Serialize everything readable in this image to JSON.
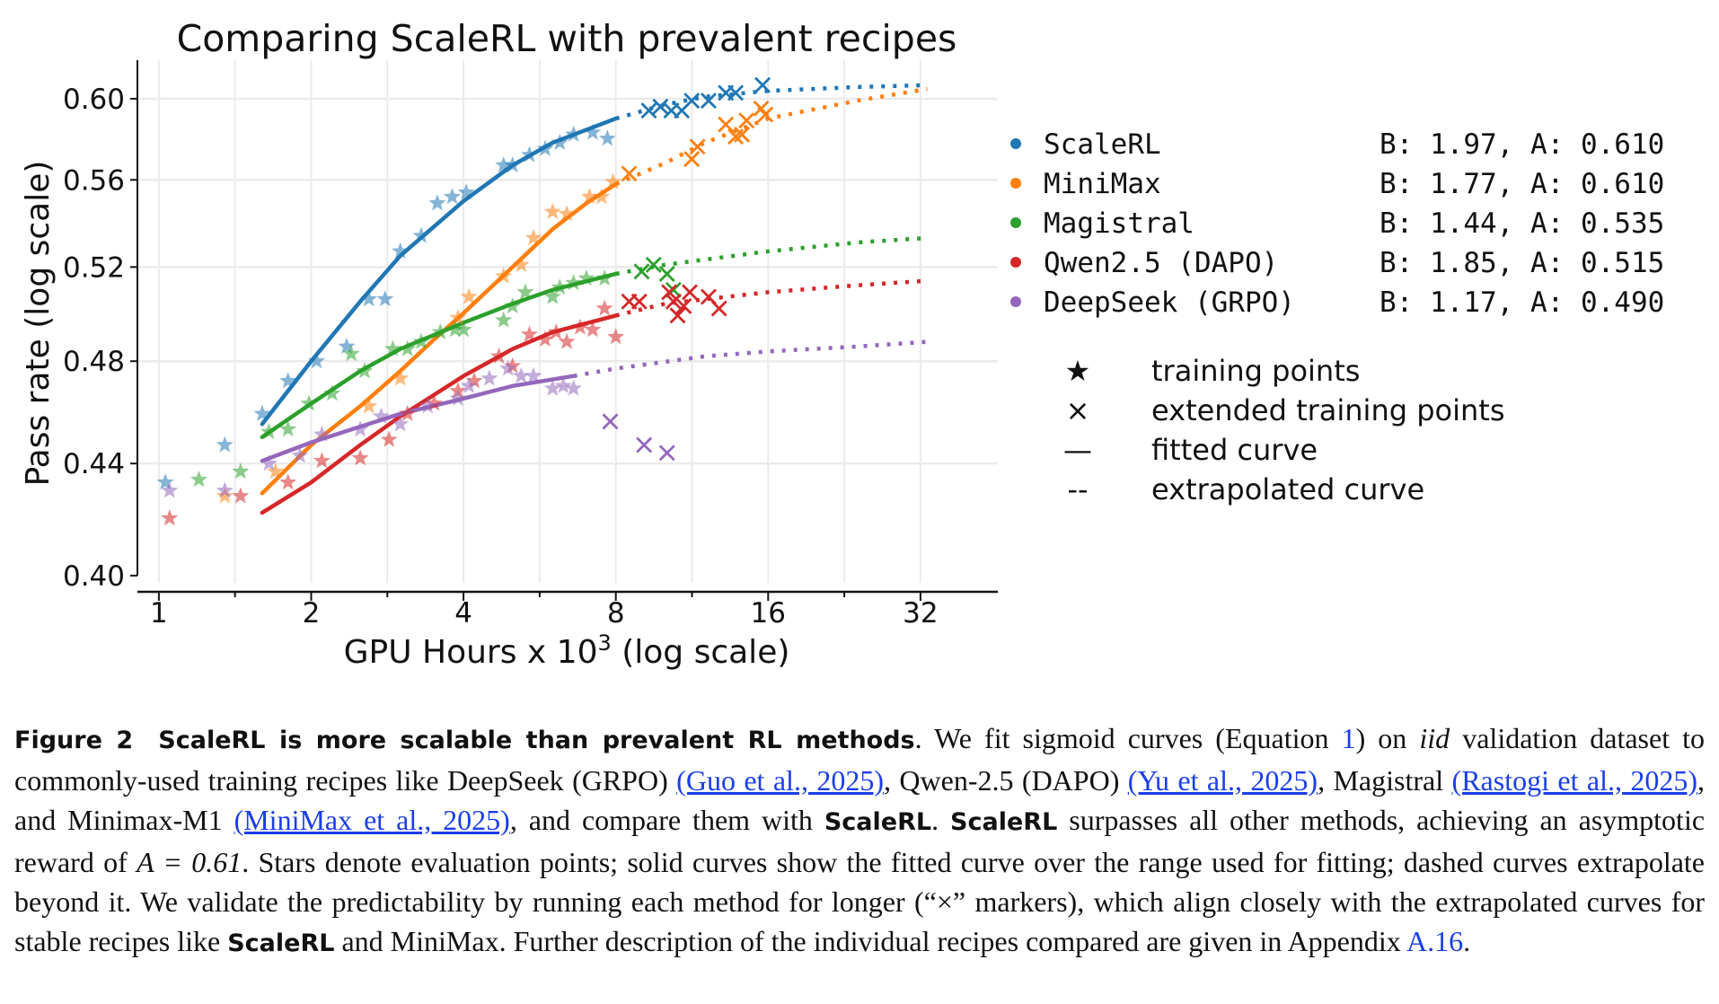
{
  "chart_data": {
    "type": "scatter",
    "title": "Comparing ScaleRL with prevalent recipes",
    "xlabel": "GPU Hours x 10",
    "xlabel_sup": "3",
    "xlabel_suffix": " (log scale)",
    "ylabel": "Pass rate (log scale)",
    "xscale": "log2",
    "yscale": "log",
    "xlim": [
      0.907,
      45.5
    ],
    "ylim": [
      0.4,
      0.62
    ],
    "xticks": [
      1,
      2,
      4,
      8,
      16,
      32
    ],
    "xtick_labels": [
      "1",
      "2",
      "4",
      "8",
      "16",
      "32"
    ],
    "yticks": [
      0.4,
      0.44,
      0.48,
      0.52,
      0.56,
      0.6
    ],
    "ytick_labels": [
      "0.40",
      "0.44",
      "0.48",
      "0.52",
      "0.56",
      "0.60"
    ],
    "grid": true,
    "legend_placement": "right, outside plot",
    "series": [
      {
        "name": "ScaleRL",
        "params": "B: 1.97, A: 0.610",
        "color": "#1f77b4",
        "training_points": [
          [
            1.03,
            0.433
          ],
          [
            1.35,
            0.447
          ],
          [
            1.6,
            0.459
          ],
          [
            1.8,
            0.472
          ],
          [
            2.05,
            0.48
          ],
          [
            2.35,
            0.486
          ],
          [
            2.6,
            0.506
          ],
          [
            2.8,
            0.506
          ],
          [
            3.0,
            0.527
          ],
          [
            3.3,
            0.534
          ],
          [
            3.55,
            0.549
          ],
          [
            3.8,
            0.552
          ],
          [
            4.05,
            0.554
          ],
          [
            4.8,
            0.567
          ],
          [
            5.0,
            0.567
          ],
          [
            5.4,
            0.572
          ],
          [
            5.8,
            0.575
          ],
          [
            6.2,
            0.578
          ],
          [
            6.6,
            0.582
          ],
          [
            7.2,
            0.583
          ],
          [
            7.7,
            0.58
          ]
        ],
        "extended_points": [
          [
            9.3,
            0.594
          ],
          [
            9.8,
            0.596
          ],
          [
            10.3,
            0.594
          ],
          [
            10.8,
            0.594
          ],
          [
            11.3,
            0.599
          ],
          [
            12.2,
            0.599
          ],
          [
            13.2,
            0.603
          ],
          [
            13.8,
            0.603
          ],
          [
            15.6,
            0.607
          ]
        ],
        "fitted_curve": [
          [
            1.6,
            0.455
          ],
          [
            2,
            0.48
          ],
          [
            2.5,
            0.505
          ],
          [
            3,
            0.525
          ],
          [
            4,
            0.55
          ],
          [
            5,
            0.567
          ],
          [
            6,
            0.578
          ],
          [
            8,
            0.59
          ]
        ],
        "extrapolated_curve": [
          [
            8,
            0.59
          ],
          [
            10,
            0.597
          ],
          [
            12,
            0.601
          ],
          [
            16,
            0.604
          ],
          [
            24,
            0.606
          ],
          [
            33,
            0.607
          ]
        ]
      },
      {
        "name": "MiniMax",
        "params": "B: 1.77, A: 0.610",
        "color": "#ff7f0e",
        "training_points": [
          [
            1.35,
            0.428
          ],
          [
            1.7,
            0.437
          ],
          [
            2.6,
            0.462
          ],
          [
            3.0,
            0.473
          ],
          [
            3.9,
            0.498
          ],
          [
            4.1,
            0.507
          ],
          [
            4.8,
            0.516
          ],
          [
            5.2,
            0.521
          ],
          [
            5.5,
            0.533
          ],
          [
            6.0,
            0.545
          ],
          [
            6.4,
            0.544
          ],
          [
            7.1,
            0.552
          ],
          [
            7.5,
            0.552
          ],
          [
            7.9,
            0.559
          ]
        ],
        "extended_points": [
          [
            8.5,
            0.563
          ],
          [
            11.3,
            0.57
          ],
          [
            11.6,
            0.576
          ],
          [
            13.2,
            0.587
          ],
          [
            13.8,
            0.581
          ],
          [
            14.2,
            0.582
          ],
          [
            14.5,
            0.589
          ],
          [
            15.5,
            0.595
          ],
          [
            15.8,
            0.592
          ]
        ],
        "fitted_curve": [
          [
            1.6,
            0.429
          ],
          [
            2,
            0.447
          ],
          [
            2.5,
            0.462
          ],
          [
            3,
            0.476
          ],
          [
            3.5,
            0.489
          ],
          [
            4,
            0.5
          ],
          [
            5,
            0.52
          ],
          [
            6,
            0.537
          ],
          [
            7,
            0.549
          ],
          [
            8,
            0.558
          ]
        ],
        "extrapolated_curve": [
          [
            8,
            0.558
          ],
          [
            10,
            0.568
          ],
          [
            12,
            0.578
          ],
          [
            16,
            0.59
          ],
          [
            24,
            0.599
          ],
          [
            33,
            0.605
          ]
        ]
      },
      {
        "name": "Magistral",
        "params": "B: 1.44, A: 0.535",
        "color": "#2ca02c",
        "training_points": [
          [
            1.2,
            0.434
          ],
          [
            1.45,
            0.437
          ],
          [
            1.65,
            0.452
          ],
          [
            1.8,
            0.453
          ],
          [
            1.98,
            0.463
          ],
          [
            2.2,
            0.467
          ],
          [
            2.4,
            0.483
          ],
          [
            2.55,
            0.476
          ],
          [
            2.9,
            0.485
          ],
          [
            3.1,
            0.485
          ],
          [
            3.3,
            0.488
          ],
          [
            3.6,
            0.492
          ],
          [
            3.85,
            0.493
          ],
          [
            4.0,
            0.493
          ],
          [
            4.8,
            0.497
          ],
          [
            5.0,
            0.503
          ],
          [
            5.3,
            0.509
          ],
          [
            6.0,
            0.507
          ],
          [
            6.2,
            0.511
          ],
          [
            6.6,
            0.513
          ],
          [
            7.0,
            0.515
          ],
          [
            7.6,
            0.515
          ]
        ],
        "extended_points": [
          [
            9.0,
            0.518
          ],
          [
            9.5,
            0.521
          ],
          [
            10.1,
            0.517
          ],
          [
            10.4,
            0.51
          ]
        ],
        "fitted_curve": [
          [
            1.6,
            0.45
          ],
          [
            2,
            0.463
          ],
          [
            2.5,
            0.476
          ],
          [
            3,
            0.485
          ],
          [
            4,
            0.496
          ],
          [
            5,
            0.504
          ],
          [
            6,
            0.51
          ],
          [
            8,
            0.517
          ]
        ],
        "extrapolated_curve": [
          [
            8,
            0.517
          ],
          [
            10,
            0.521
          ],
          [
            16,
            0.527
          ],
          [
            24,
            0.531
          ],
          [
            33,
            0.533
          ]
        ]
      },
      {
        "name": "Qwen2.5 (DAPO)",
        "params": "B: 1.85, A: 0.515",
        "color": "#d62728",
        "training_points": [
          [
            1.05,
            0.42
          ],
          [
            1.45,
            0.428
          ],
          [
            1.8,
            0.433
          ],
          [
            2.1,
            0.441
          ],
          [
            2.5,
            0.442
          ],
          [
            2.85,
            0.449
          ],
          [
            3.1,
            0.459
          ],
          [
            3.5,
            0.463
          ],
          [
            3.9,
            0.468
          ],
          [
            4.2,
            0.472
          ],
          [
            4.7,
            0.482
          ],
          [
            5.0,
            0.478
          ],
          [
            5.4,
            0.491
          ],
          [
            5.8,
            0.489
          ],
          [
            6.1,
            0.492
          ],
          [
            6.4,
            0.488
          ],
          [
            6.8,
            0.494
          ],
          [
            7.2,
            0.493
          ],
          [
            7.6,
            0.502
          ],
          [
            8.0,
            0.49
          ]
        ],
        "extended_points": [
          [
            8.5,
            0.505
          ],
          [
            8.9,
            0.505
          ],
          [
            10.2,
            0.509
          ],
          [
            10.4,
            0.505
          ],
          [
            10.6,
            0.499
          ],
          [
            10.9,
            0.503
          ],
          [
            11.2,
            0.509
          ],
          [
            12.2,
            0.507
          ],
          [
            12.8,
            0.502
          ]
        ],
        "fitted_curve": [
          [
            1.6,
            0.422
          ],
          [
            2,
            0.433
          ],
          [
            2.5,
            0.447
          ],
          [
            3,
            0.458
          ],
          [
            4,
            0.474
          ],
          [
            5,
            0.485
          ],
          [
            6,
            0.492
          ],
          [
            8,
            0.499
          ]
        ],
        "extrapolated_curve": [
          [
            8,
            0.499
          ],
          [
            10,
            0.504
          ],
          [
            16,
            0.509
          ],
          [
            24,
            0.512
          ],
          [
            33,
            0.514
          ]
        ]
      },
      {
        "name": "DeepSeek (GRPO)",
        "params": "B: 1.17, A: 0.490",
        "color": "#9467bd",
        "training_points": [
          [
            1.05,
            0.43
          ],
          [
            1.35,
            0.43
          ],
          [
            1.65,
            0.44
          ],
          [
            1.9,
            0.443
          ],
          [
            2.1,
            0.451
          ],
          [
            2.5,
            0.453
          ],
          [
            2.75,
            0.458
          ],
          [
            3.0,
            0.455
          ],
          [
            3.4,
            0.462
          ],
          [
            3.9,
            0.465
          ],
          [
            4.1,
            0.47
          ],
          [
            4.5,
            0.473
          ],
          [
            4.9,
            0.477
          ],
          [
            5.2,
            0.474
          ],
          [
            5.5,
            0.474
          ],
          [
            6.0,
            0.469
          ],
          [
            6.3,
            0.47
          ],
          [
            6.6,
            0.469
          ]
        ],
        "extended_points": [
          [
            7.8,
            0.456
          ],
          [
            9.1,
            0.447
          ],
          [
            10.1,
            0.444
          ]
        ],
        "fitted_curve": [
          [
            1.6,
            0.441
          ],
          [
            2,
            0.448
          ],
          [
            2.5,
            0.454
          ],
          [
            3,
            0.459
          ],
          [
            4,
            0.465
          ],
          [
            5,
            0.47
          ],
          [
            6.6,
            0.474
          ]
        ],
        "extrapolated_curve": [
          [
            6.6,
            0.474
          ],
          [
            8,
            0.477
          ],
          [
            12,
            0.482
          ],
          [
            16,
            0.484
          ],
          [
            24,
            0.486
          ],
          [
            33,
            0.488
          ]
        ]
      }
    ],
    "marker_legend": [
      {
        "symbol": "★",
        "label": "training points"
      },
      {
        "symbol": "×",
        "label": "extended training points"
      },
      {
        "symbol": "—",
        "label": "fitted curve"
      },
      {
        "symbol": "--",
        "label": "extrapolated curve"
      }
    ]
  },
  "caption": {
    "figure_label": "Figure 2",
    "bold_title": "ScaleRL is more scalable than prevalent RL methods",
    "t1": ". We fit sigmoid curves (Equation ",
    "eq_ref": "1",
    "t2": ") on ",
    "iid": "iid",
    "t3": " validation dataset to commonly-used training recipes like DeepSeek (GRPO) ",
    "cite1": "(Guo et al., 2025)",
    "t4": ", Qwen-2.5 (DAPO) ",
    "cite2": "(Yu et al., 2025)",
    "t5": ", Magistral ",
    "cite3": "(Rastogi et al., 2025)",
    "t6": ", and Minimax-M1 ",
    "cite4": "(MiniMax et al., 2025)",
    "t7": ", and compare them with ",
    "scalerl1": "ScaleRL",
    "t8": ". ",
    "scalerl2": "ScaleRL",
    "t9": " surpasses all other methods, achieving an asymptotic reward of ",
    "eq": "A = 0.61",
    "t10": ". Stars denote evaluation points; solid curves show the fitted curve over the range used for fitting; dashed curves extrapolate beyond it. We validate the predictability by running each method for longer (“×” markers), which align closely with the extrapolated curves for stable recipes like ",
    "scalerl3": "ScaleRL",
    "t11": " and MiniMax. Further description of the individual recipes compared are given in Appendix ",
    "appendix_ref": "A.16",
    "t12": "."
  }
}
